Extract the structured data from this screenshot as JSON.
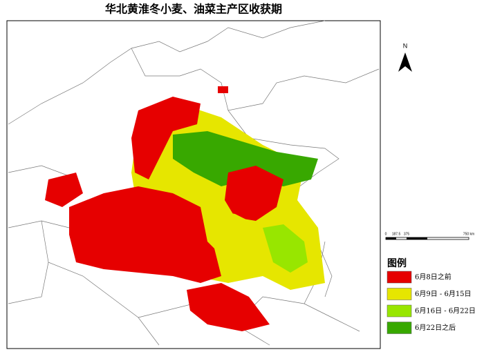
{
  "title": "华北黄淮冬小麦、油菜主产区收获期",
  "north": "N",
  "scale_bar": {
    "labels": [
      "0",
      "187.5",
      "375",
      "750 km"
    ]
  },
  "legend": {
    "title": "图例",
    "items": [
      {
        "label": "6月8日之前",
        "color": "#e60000"
      },
      {
        "label": "6月9日 - 6月15日",
        "color": "#e6e600"
      },
      {
        "label": "6月16日 - 6月22日",
        "color": "#98e600"
      },
      {
        "label": "6月22日之后",
        "color": "#38a800"
      }
    ]
  }
}
